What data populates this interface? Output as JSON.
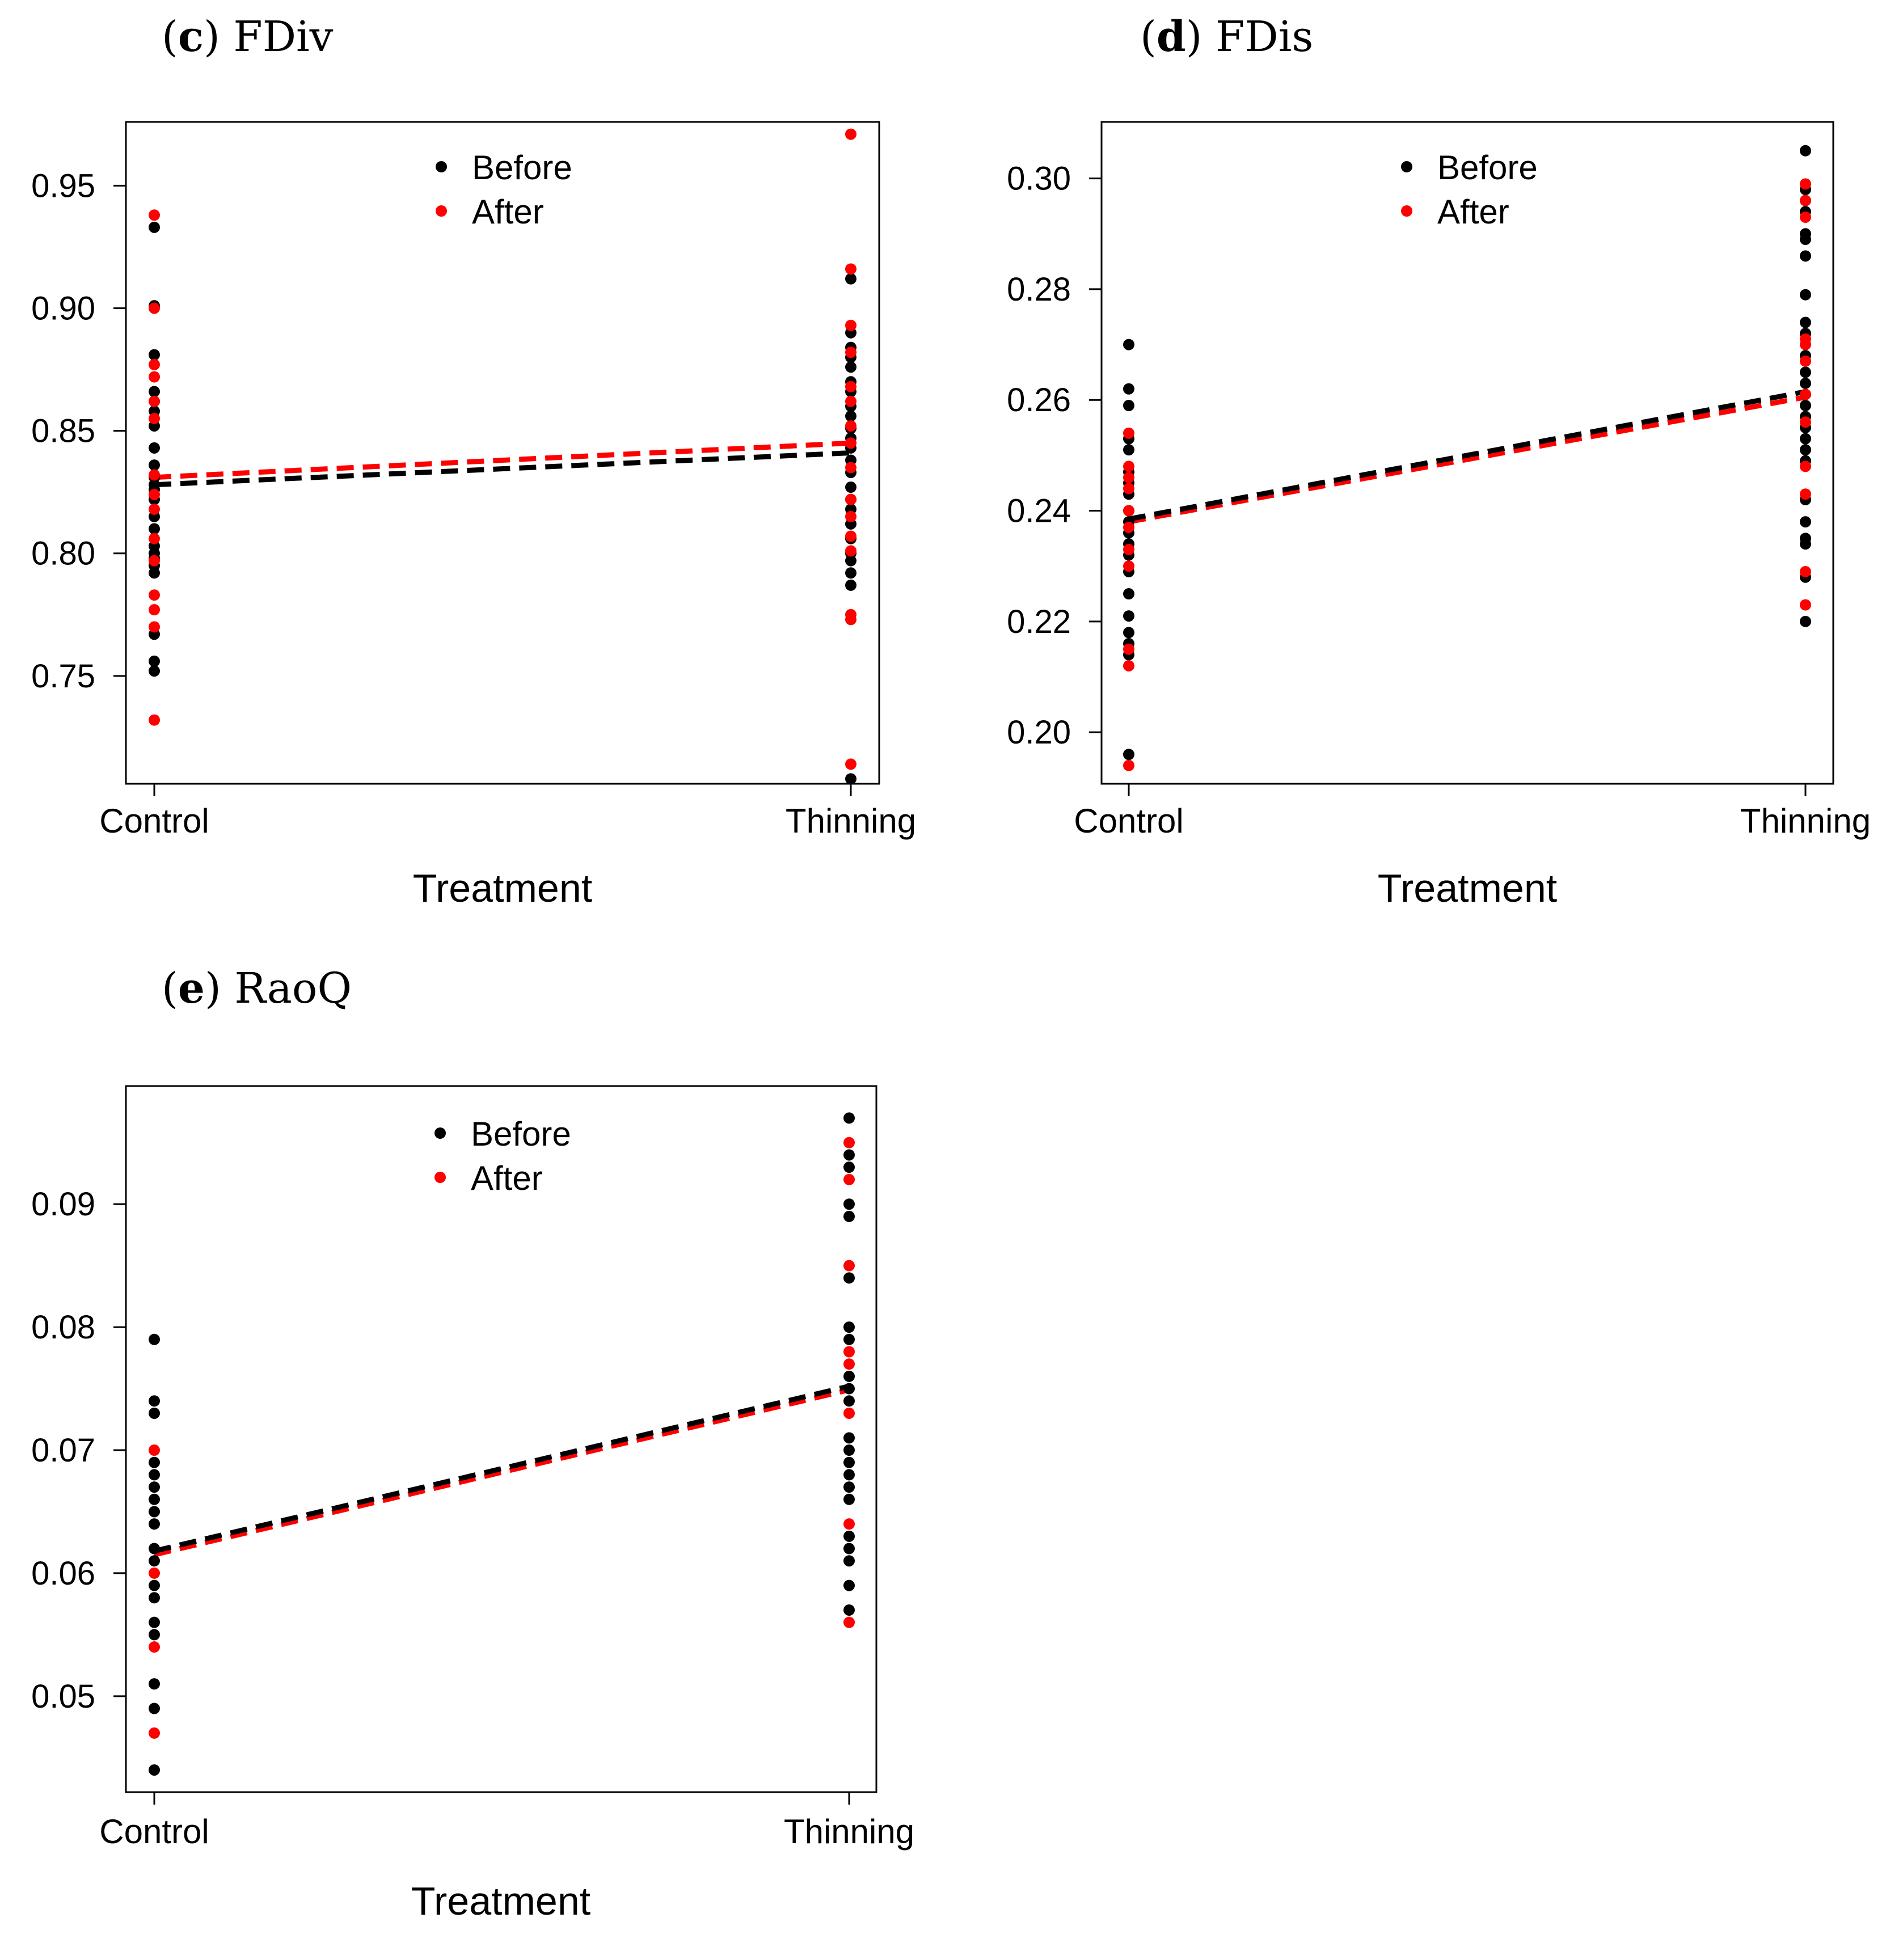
{
  "colors": {
    "before": "#000000",
    "after": "#ff0000"
  },
  "chart_data": [
    {
      "id": "c",
      "title_letter": "c",
      "title_metric": "FDiv",
      "type": "scatter",
      "xlabel": "Treatment",
      "categories": [
        "Control",
        "Thinning"
      ],
      "ylim": [
        0.706,
        0.976
      ],
      "yticks": [
        0.75,
        0.8,
        0.85,
        0.9,
        0.95
      ],
      "ytick_labels": [
        "0.75",
        "0.80",
        "0.85",
        "0.90",
        "0.95"
      ],
      "legend": [
        "Before",
        "After"
      ],
      "series": [
        {
          "name": "Before",
          "color": "#000000",
          "points": {
            "Control": [
              0.933,
              0.901,
              0.881,
              0.866,
              0.862,
              0.858,
              0.852,
              0.843,
              0.836,
              0.831,
              0.828,
              0.826,
              0.822,
              0.815,
              0.81,
              0.803,
              0.8,
              0.798,
              0.795,
              0.792,
              0.767,
              0.756,
              0.752
            ],
            "Thinning": [
              0.912,
              0.89,
              0.884,
              0.88,
              0.876,
              0.87,
              0.866,
              0.86,
              0.856,
              0.851,
              0.847,
              0.843,
              0.838,
              0.833,
              0.827,
              0.822,
              0.818,
              0.812,
              0.806,
              0.8,
              0.797,
              0.792,
              0.787,
              0.708
            ]
          },
          "trend": [
            0.828,
            0.841
          ]
        },
        {
          "name": "After",
          "color": "#ff0000",
          "points": {
            "Control": [
              0.938,
              0.9,
              0.877,
              0.872,
              0.862,
              0.855,
              0.832,
              0.824,
              0.818,
              0.806,
              0.797,
              0.783,
              0.777,
              0.77,
              0.732
            ],
            "Thinning": [
              0.971,
              0.916,
              0.893,
              0.882,
              0.868,
              0.862,
              0.852,
              0.845,
              0.835,
              0.822,
              0.815,
              0.807,
              0.801,
              0.775,
              0.773,
              0.714
            ]
          },
          "trend": [
            0.831,
            0.845
          ]
        }
      ]
    },
    {
      "id": "d",
      "title_letter": "d",
      "title_metric": "FDis",
      "type": "scatter",
      "xlabel": "Treatment",
      "categories": [
        "Control",
        "Thinning"
      ],
      "ylim": [
        0.1907,
        0.3102
      ],
      "yticks": [
        0.2,
        0.22,
        0.24,
        0.26,
        0.28,
        0.3
      ],
      "ytick_labels": [
        "0.20",
        "0.22",
        "0.24",
        "0.26",
        "0.28",
        "0.30"
      ],
      "legend": [
        "Before",
        "After"
      ],
      "series": [
        {
          "name": "Before",
          "color": "#000000",
          "points": {
            "Control": [
              0.27,
              0.262,
              0.259,
              0.253,
              0.251,
              0.247,
              0.245,
              0.243,
              0.24,
              0.238,
              0.236,
              0.234,
              0.232,
              0.229,
              0.225,
              0.221,
              0.218,
              0.216,
              0.214,
              0.196
            ],
            "Thinning": [
              0.305,
              0.298,
              0.296,
              0.294,
              0.29,
              0.289,
              0.286,
              0.279,
              0.274,
              0.272,
              0.268,
              0.265,
              0.263,
              0.261,
              0.259,
              0.257,
              0.255,
              0.253,
              0.251,
              0.249,
              0.242,
              0.238,
              0.235,
              0.234,
              0.228,
              0.22
            ]
          },
          "trend": [
            0.2385,
            0.2615
          ]
        },
        {
          "name": "After",
          "color": "#ff0000",
          "points": {
            "Control": [
              0.254,
              0.248,
              0.246,
              0.244,
              0.24,
              0.237,
              0.233,
              0.23,
              0.215,
              0.212,
              0.194
            ],
            "Thinning": [
              0.299,
              0.296,
              0.293,
              0.271,
              0.27,
              0.267,
              0.261,
              0.256,
              0.248,
              0.243,
              0.229,
              0.223
            ]
          },
          "trend": [
            0.238,
            0.2605
          ]
        }
      ]
    },
    {
      "id": "e",
      "title_letter": "e",
      "title_metric": "RaoQ",
      "type": "scatter",
      "xlabel": "Treatment",
      "categories": [
        "Control",
        "Thinning"
      ],
      "ylim": [
        0.0422,
        0.0996
      ],
      "yticks": [
        0.05,
        0.06,
        0.07,
        0.08,
        0.09
      ],
      "ytick_labels": [
        "0.05",
        "0.06",
        "0.07",
        "0.08",
        "0.09"
      ],
      "legend": [
        "Before",
        "After"
      ],
      "series": [
        {
          "name": "Before",
          "color": "#000000",
          "points": {
            "Control": [
              0.079,
              0.074,
              0.073,
              0.069,
              0.068,
              0.067,
              0.066,
              0.065,
              0.064,
              0.062,
              0.061,
              0.059,
              0.058,
              0.056,
              0.055,
              0.051,
              0.049,
              0.044
            ],
            "Thinning": [
              0.097,
              0.094,
              0.093,
              0.09,
              0.089,
              0.084,
              0.08,
              0.079,
              0.076,
              0.075,
              0.074,
              0.071,
              0.07,
              0.069,
              0.068,
              0.067,
              0.066,
              0.063,
              0.062,
              0.061,
              0.059,
              0.057
            ]
          },
          "trend": [
            0.0618,
            0.0752
          ]
        },
        {
          "name": "After",
          "color": "#ff0000",
          "points": {
            "Control": [
              0.07,
              0.06,
              0.054,
              0.047
            ],
            "Thinning": [
              0.095,
              0.092,
              0.085,
              0.078,
              0.077,
              0.073,
              0.064,
              0.056
            ]
          },
          "trend": [
            0.0615,
            0.0749
          ]
        }
      ]
    }
  ]
}
